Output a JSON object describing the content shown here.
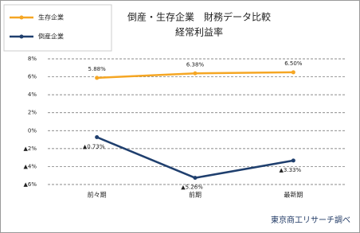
{
  "chart_data": {
    "type": "line",
    "title": "倒産・生存企業　財務データ比較",
    "subtitle": "経常利益率",
    "source": "東京商工リサーチ調べ",
    "categories": [
      "前々期",
      "前期",
      "最新期"
    ],
    "series": [
      {
        "name": "生存企業",
        "color": "#f5a623",
        "values": [
          5.88,
          6.38,
          6.5
        ],
        "value_labels": [
          "5.88%",
          "6.38%",
          "6.50%"
        ]
      },
      {
        "name": "倒産企業",
        "color": "#1f3f6e",
        "values": [
          -0.73,
          -5.26,
          -3.33
        ],
        "value_labels": [
          "▲0.73%",
          "▲5.26%",
          "▲3.33%"
        ]
      }
    ],
    "ylim": [
      -6,
      8
    ],
    "yticks": [
      {
        "value": 8,
        "label": "8%"
      },
      {
        "value": 6,
        "label": "6%"
      },
      {
        "value": 4,
        "label": "4%"
      },
      {
        "value": 2,
        "label": "2%"
      },
      {
        "value": 0,
        "label": "0%"
      },
      {
        "value": -2,
        "label": "▲2%"
      },
      {
        "value": -4,
        "label": "▲4%"
      },
      {
        "value": -6,
        "label": "▲6%"
      }
    ],
    "grid": true
  }
}
